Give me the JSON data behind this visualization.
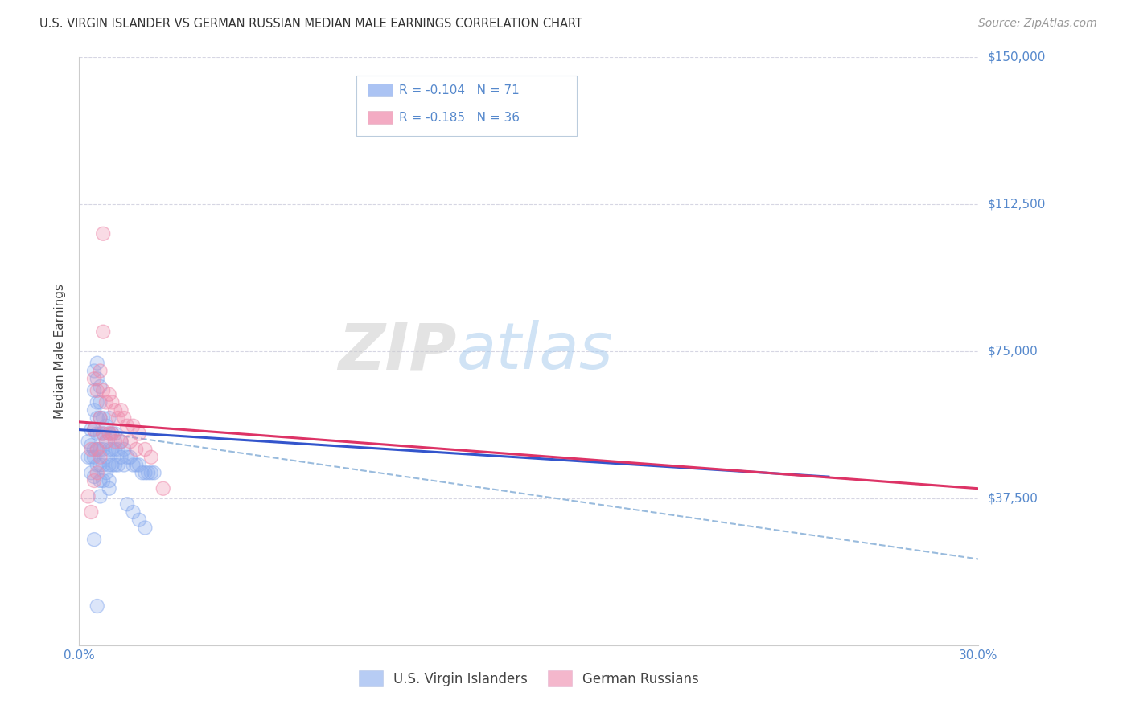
{
  "title": "U.S. VIRGIN ISLANDER VS GERMAN RUSSIAN MEDIAN MALE EARNINGS CORRELATION CHART",
  "source": "Source: ZipAtlas.com",
  "ylabel": "Median Male Earnings",
  "watermark_zip": "ZIP",
  "watermark_atlas": "atlas",
  "xlim": [
    0.0,
    0.3
  ],
  "ylim": [
    0,
    150000
  ],
  "ytick_vals": [
    37500,
    75000,
    112500,
    150000
  ],
  "ytick_labels": [
    "$37,500",
    "$75,000",
    "$112,500",
    "$150,000"
  ],
  "xtick_vals": [
    0.0,
    0.05,
    0.1,
    0.15,
    0.2,
    0.25,
    0.3
  ],
  "xtick_labels": [
    "0.0%",
    "",
    "",
    "",
    "",
    "",
    "30.0%"
  ],
  "legend1_label": "R = -0.104   N = 71",
  "legend2_label": "R = -0.185   N = 36",
  "scatter_blue_color": "#88aaee",
  "scatter_pink_color": "#ee88aa",
  "line_blue_color": "#3355cc",
  "line_pink_color": "#dd3366",
  "dashed_color": "#99bbdd",
  "axis_color": "#5588cc",
  "grid_color": "#ccccdd",
  "background_color": "#ffffff",
  "legend_box_color": "#ddeeff",
  "blue_line_x": [
    0.0,
    0.25
  ],
  "blue_line_y": [
    55000,
    43000
  ],
  "pink_line_x": [
    0.0,
    0.3
  ],
  "pink_line_y": [
    57000,
    40000
  ],
  "dashed_line_x": [
    0.0,
    0.3
  ],
  "dashed_line_y": [
    55000,
    22000
  ],
  "blue_scatter_x": [
    0.003,
    0.003,
    0.004,
    0.004,
    0.004,
    0.004,
    0.005,
    0.005,
    0.005,
    0.005,
    0.005,
    0.005,
    0.005,
    0.006,
    0.006,
    0.006,
    0.006,
    0.006,
    0.006,
    0.006,
    0.007,
    0.007,
    0.007,
    0.007,
    0.007,
    0.007,
    0.007,
    0.008,
    0.008,
    0.008,
    0.008,
    0.008,
    0.009,
    0.009,
    0.009,
    0.009,
    0.01,
    0.01,
    0.01,
    0.01,
    0.01,
    0.011,
    0.011,
    0.011,
    0.012,
    0.012,
    0.012,
    0.013,
    0.013,
    0.014,
    0.014,
    0.015,
    0.015,
    0.016,
    0.017,
    0.018,
    0.019,
    0.02,
    0.021,
    0.022,
    0.023,
    0.024,
    0.025,
    0.016,
    0.018,
    0.02,
    0.022,
    0.005,
    0.007,
    0.01,
    0.006
  ],
  "blue_scatter_y": [
    48000,
    52000,
    55000,
    48000,
    51000,
    44000,
    70000,
    65000,
    60000,
    55000,
    50000,
    48000,
    43000,
    72000,
    68000,
    62000,
    58000,
    54000,
    50000,
    46000,
    66000,
    62000,
    58000,
    54000,
    50000,
    46000,
    42000,
    58000,
    54000,
    50000,
    46000,
    42000,
    56000,
    52000,
    48000,
    44000,
    58000,
    54000,
    50000,
    46000,
    42000,
    54000,
    50000,
    46000,
    54000,
    50000,
    46000,
    50000,
    46000,
    52000,
    48000,
    50000,
    46000,
    48000,
    48000,
    46000,
    46000,
    46000,
    44000,
    44000,
    44000,
    44000,
    44000,
    36000,
    34000,
    32000,
    30000,
    27000,
    38000,
    40000,
    10000
  ],
  "pink_scatter_x": [
    0.003,
    0.004,
    0.004,
    0.005,
    0.005,
    0.005,
    0.006,
    0.006,
    0.007,
    0.007,
    0.007,
    0.008,
    0.008,
    0.008,
    0.009,
    0.009,
    0.01,
    0.01,
    0.011,
    0.011,
    0.012,
    0.012,
    0.013,
    0.014,
    0.014,
    0.015,
    0.016,
    0.017,
    0.018,
    0.019,
    0.02,
    0.022,
    0.024,
    0.028,
    0.008,
    0.006
  ],
  "pink_scatter_y": [
    38000,
    50000,
    34000,
    68000,
    55000,
    42000,
    65000,
    50000,
    70000,
    58000,
    48000,
    105000,
    65000,
    54000,
    62000,
    52000,
    64000,
    54000,
    62000,
    54000,
    60000,
    52000,
    58000,
    60000,
    52000,
    58000,
    56000,
    52000,
    56000,
    50000,
    54000,
    50000,
    48000,
    40000,
    80000,
    44000
  ]
}
